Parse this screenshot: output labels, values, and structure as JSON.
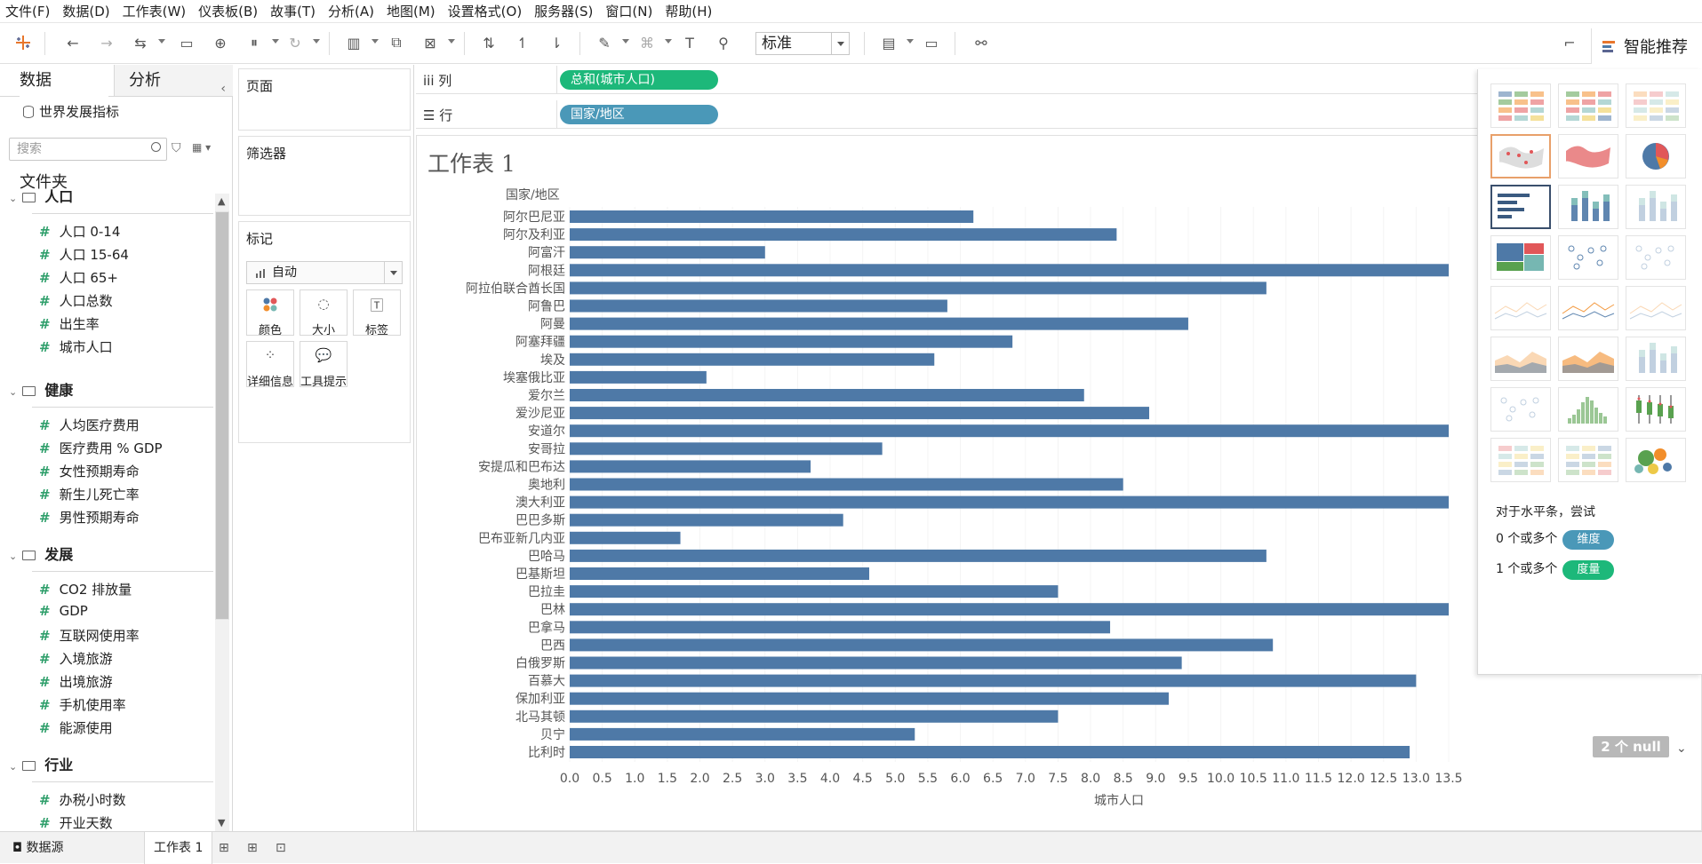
{
  "menu": [
    "文件(F)",
    "数据(D)",
    "工作表(W)",
    "仪表板(B)",
    "故事(T)",
    "分析(A)",
    "地图(M)",
    "设置格式(O)",
    "服务器(S)",
    "窗口(N)",
    "帮助(H)"
  ],
  "toolbar": {
    "view_mode": "标准",
    "smart_tab": "智能推荐"
  },
  "left_pane": {
    "tab_data": "数据",
    "tab_analysis": "分析",
    "datasource": "世界发展指标",
    "search_placeholder": "搜索",
    "folder_title": "文件夹",
    "groups": [
      {
        "name": "人口",
        "fields": [
          "人口 0-14",
          "人口 15-64",
          "人口 65+",
          "人口总数",
          "出生率",
          "城市人口"
        ]
      },
      {
        "name": "健康",
        "fields": [
          "人均医疗费用",
          "医疗费用 % GDP",
          "女性预期寿命",
          "新生儿死亡率",
          "男性预期寿命"
        ]
      },
      {
        "name": "发展",
        "fields": [
          "CO2 排放量",
          "GDP",
          "互联网使用率",
          "入境旅游",
          "出境旅游",
          "手机使用率",
          "能源使用"
        ]
      },
      {
        "name": "行业",
        "fields": [
          "办税小时数",
          "开业天数"
        ]
      }
    ]
  },
  "cards": {
    "pages": "页面",
    "filters": "筛选器",
    "marks": "标记",
    "mark_type": "自动",
    "mark_buttons": [
      "颜色",
      "大小",
      "标签",
      "详细信息",
      "工具提示"
    ]
  },
  "shelves": {
    "columns_label": "列",
    "columns_pill": "总和(城市人口)",
    "rows_label": "行",
    "rows_pill": "国家/地区"
  },
  "sheet": {
    "title": "工作表 1",
    "row_header": "国家/地区",
    "null_badge": "2 个 null"
  },
  "chart_data": {
    "type": "bar",
    "orientation": "horizontal",
    "xlabel": "城市人口",
    "ylabel": "国家/地区",
    "xlim": [
      0,
      13.5
    ],
    "xticks": [
      "0.0",
      "0.5",
      "1.0",
      "1.5",
      "2.0",
      "2.5",
      "3.0",
      "3.5",
      "4.0",
      "4.5",
      "5.0",
      "5.5",
      "6.0",
      "6.5",
      "7.0",
      "7.5",
      "8.0",
      "8.5",
      "9.0",
      "9.5",
      "10.0",
      "10.5",
      "11.0",
      "11.5",
      "12.0",
      "12.5",
      "13.0",
      "13.5"
    ],
    "categories": [
      "阿尔巴尼亚",
      "阿尔及利亚",
      "阿富汗",
      "阿根廷",
      "阿拉伯联合酋长国",
      "阿鲁巴",
      "阿曼",
      "阿塞拜疆",
      "埃及",
      "埃塞俄比亚",
      "爱尔兰",
      "爱沙尼亚",
      "安道尔",
      "安哥拉",
      "安提瓜和巴布达",
      "奥地利",
      "澳大利亚",
      "巴巴多斯",
      "巴布亚新几内亚",
      "巴哈马",
      "巴基斯坦",
      "巴拉圭",
      "巴林",
      "巴拿马",
      "巴西",
      "白俄罗斯",
      "百慕大",
      "保加利亚",
      "北马其顿",
      "贝宁",
      "比利时"
    ],
    "values": [
      6.2,
      8.4,
      3.0,
      13.5,
      10.7,
      5.8,
      9.5,
      6.8,
      5.6,
      2.1,
      7.9,
      8.9,
      13.5,
      4.8,
      3.7,
      8.5,
      13.5,
      4.2,
      1.7,
      10.7,
      4.6,
      7.5,
      13.5,
      8.3,
      10.8,
      9.4,
      13.0,
      9.2,
      7.5,
      5.3,
      12.9
    ],
    "grid": false,
    "bar_color": "#4e79a7"
  },
  "smart_panel": {
    "hint_title": "对于水平条，尝试",
    "hint_dim_prefix": "0 个或多个",
    "hint_dim_pill": "维度",
    "hint_meas_prefix": "1 个或多个",
    "hint_meas_pill": "度量"
  },
  "bottom": {
    "datasource_tab": "数据源",
    "sheet_tab": "工作表 1"
  },
  "colors": {
    "measure_pill": "#1db87a",
    "dimension_pill": "#4a98b8",
    "bar": "#4e79a7"
  }
}
